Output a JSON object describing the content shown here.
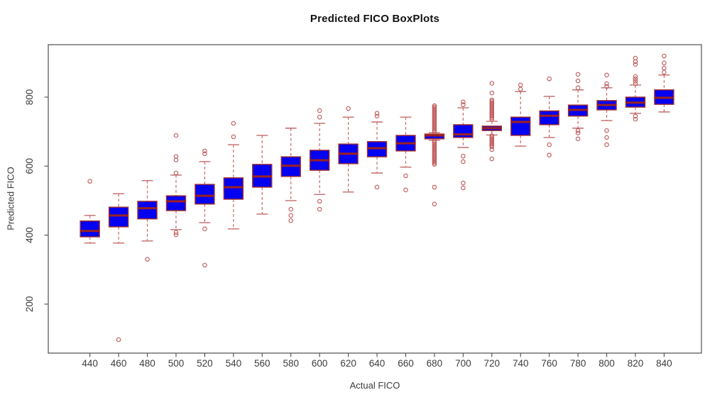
{
  "chart_data": {
    "type": "boxplot",
    "title": "Predicted FICO BoxPlots",
    "xlabel": "Actual FICO",
    "ylabel": "Predicted FICO",
    "x_ticks": [
      440,
      460,
      480,
      500,
      520,
      540,
      560,
      580,
      600,
      620,
      640,
      660,
      680,
      700,
      720,
      740,
      760,
      780,
      800,
      820,
      840
    ],
    "y_ticks": [
      200,
      400,
      600,
      800
    ],
    "xlim": [
      411,
      866
    ],
    "ylim": [
      58,
      952
    ],
    "grid": false,
    "legend": "none",
    "colors": {
      "box_fill": "#0202f0",
      "box_border": "#a22e2e",
      "median": "#9c2121",
      "whisker": "#c46a6a",
      "outlier": "#c05e5e",
      "frame": "#4d4d4d",
      "text": "#3c3c3c"
    },
    "boxes": [
      {
        "x": 440,
        "low": 377,
        "q1": 395,
        "median": 412,
        "q3": 441,
        "high": 457,
        "outliers": [
          556
        ]
      },
      {
        "x": 460,
        "low": 377,
        "q1": 424,
        "median": 457,
        "q3": 481,
        "high": 520,
        "outliers": [
          97
        ]
      },
      {
        "x": 480,
        "low": 383,
        "q1": 447,
        "median": 478,
        "q3": 498,
        "high": 558,
        "outliers": [
          330
        ]
      },
      {
        "x": 500,
        "low": 416,
        "q1": 471,
        "median": 498,
        "q3": 514,
        "high": 574,
        "outliers": [
          689,
          628,
          618,
          580,
          408,
          401
        ]
      },
      {
        "x": 520,
        "low": 436,
        "q1": 490,
        "median": 514,
        "q3": 547,
        "high": 613,
        "outliers": [
          644,
          636,
          418,
          313
        ]
      },
      {
        "x": 540,
        "low": 418,
        "q1": 504,
        "median": 539,
        "q3": 566,
        "high": 662,
        "outliers": [
          724,
          685
        ]
      },
      {
        "x": 560,
        "low": 461,
        "q1": 539,
        "median": 570,
        "q3": 605,
        "high": 689,
        "outliers": []
      },
      {
        "x": 580,
        "low": 500,
        "q1": 570,
        "median": 601,
        "q3": 627,
        "high": 710,
        "outliers": [
          475,
          457,
          442
        ]
      },
      {
        "x": 600,
        "low": 518,
        "q1": 588,
        "median": 617,
        "q3": 646,
        "high": 724,
        "outliers": [
          761,
          742,
          498,
          475
        ]
      },
      {
        "x": 620,
        "low": 525,
        "q1": 607,
        "median": 636,
        "q3": 664,
        "high": 742,
        "outliers": [
          767
        ]
      },
      {
        "x": 640,
        "low": 580,
        "q1": 627,
        "median": 652,
        "q3": 671,
        "high": 728,
        "outliers": [
          753,
          745,
          539
        ]
      },
      {
        "x": 660,
        "low": 597,
        "q1": 644,
        "median": 666,
        "q3": 689,
        "high": 742,
        "outliers": [
          572,
          531
        ]
      },
      {
        "x": 680,
        "low": 675,
        "q1": 679,
        "median": 689,
        "q3": 693,
        "high": 697,
        "outliers": [
          775,
          771,
          767,
          763,
          759,
          755,
          751,
          747,
          743,
          739,
          735,
          731,
          727,
          723,
          719,
          715,
          711,
          707,
          703,
          699,
          673,
          669,
          665,
          661,
          657,
          653,
          649,
          645,
          641,
          637,
          633,
          629,
          625,
          621,
          617,
          613,
          609,
          605,
          539,
          490
        ]
      },
      {
        "x": 700,
        "low": 654,
        "q1": 683,
        "median": 692,
        "q3": 720,
        "high": 769,
        "outliers": [
          786,
          778,
          629,
          613,
          551,
          537
        ]
      },
      {
        "x": 720,
        "low": 690,
        "q1": 703,
        "median": 710,
        "q3": 716,
        "high": 730,
        "outliers": [
          840,
          812,
          792,
          788,
          784,
          780,
          776,
          772,
          768,
          764,
          760,
          756,
          752,
          748,
          744,
          740,
          736,
          688,
          684,
          680,
          676,
          672,
          668,
          664,
          660,
          656,
          648,
          621
        ]
      },
      {
        "x": 740,
        "low": 658,
        "q1": 689,
        "median": 728,
        "q3": 742,
        "high": 816,
        "outliers": [
          835,
          823
        ]
      },
      {
        "x": 760,
        "low": 683,
        "q1": 720,
        "median": 746,
        "q3": 760,
        "high": 802,
        "outliers": [
          853,
          662,
          632
        ]
      },
      {
        "x": 780,
        "low": 710,
        "q1": 745,
        "median": 763,
        "q3": 777,
        "high": 821,
        "outliers": [
          866,
          847,
          827,
          703,
          696,
          679
        ]
      },
      {
        "x": 800,
        "low": 732,
        "q1": 763,
        "median": 777,
        "q3": 790,
        "high": 827,
        "outliers": [
          864,
          839,
          831,
          703,
          683,
          662
        ]
      },
      {
        "x": 820,
        "low": 753,
        "q1": 771,
        "median": 784,
        "q3": 800,
        "high": 835,
        "outliers": [
          913,
          903,
          895,
          860,
          853,
          846,
          839,
          745,
          736
        ]
      },
      {
        "x": 840,
        "low": 757,
        "q1": 779,
        "median": 798,
        "q3": 821,
        "high": 864,
        "outliers": [
          919,
          899,
          884,
          872
        ]
      }
    ]
  }
}
